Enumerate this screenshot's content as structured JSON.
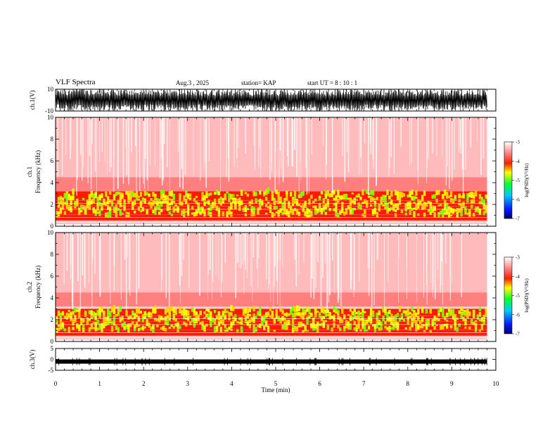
{
  "header": {
    "title": "VLF Spectra",
    "date": "Aug.3  , 2025",
    "station": "station= KAP",
    "start": "start  UT  =   8  : 10 : 1"
  },
  "chart_data": [
    {
      "type": "line",
      "name": "ch1-waveform",
      "ylabel": "ch.1(V)",
      "ylim": [
        -10,
        10
      ],
      "yticks": [
        "10",
        "-10"
      ],
      "xlim": [
        0,
        10
      ],
      "description_range": "signal spans approximately -10 to 10 V through 0-9.8 min"
    },
    {
      "type": "heatmap",
      "name": "ch1-spectrogram",
      "ylabel": "ch.1\nFrequency (kHz)",
      "ylabel_lines": [
        "ch.1",
        "Frequency  (kHz)"
      ],
      "ylim": [
        0,
        10
      ],
      "yticks": [
        "0",
        "2",
        "4",
        "6",
        "8",
        "10"
      ],
      "xlim": [
        0,
        9.8
      ],
      "colorbar": {
        "label": "log(PSD)(V²/Hz)",
        "range": [
          -7,
          -3
        ],
        "ticks": [
          "-3",
          "-4",
          "-5",
          "-6",
          "-7"
        ]
      },
      "intense_band_khz": [
        0.5,
        3.2
      ]
    },
    {
      "type": "heatmap",
      "name": "ch2-spectrogram",
      "ylabel_lines": [
        "ch.2",
        "Frequency  (kHz)"
      ],
      "ylim": [
        0,
        10
      ],
      "yticks": [
        "0",
        "2",
        "4",
        "6",
        "8",
        "10"
      ],
      "xlim": [
        0,
        9.8
      ],
      "colorbar": {
        "label": "log(PSD)(V²/Hz)",
        "range": [
          -7,
          -3
        ],
        "ticks": [
          "-3",
          "-4",
          "-5",
          "-6",
          "-7"
        ]
      },
      "intense_band_khz": [
        0.5,
        3.0
      ]
    },
    {
      "type": "line",
      "name": "ch3-waveform",
      "ylabel": "ch.3(V)",
      "ylim": [
        -5,
        5
      ],
      "yticks": [
        "5",
        "0",
        "-5"
      ],
      "level": -1
    }
  ],
  "xaxis": {
    "label": "Time  (min)",
    "ticks": [
      "0",
      "1",
      "2",
      "3",
      "4",
      "5",
      "6",
      "7",
      "8",
      "9",
      "10"
    ],
    "range": [
      0,
      10
    ]
  }
}
